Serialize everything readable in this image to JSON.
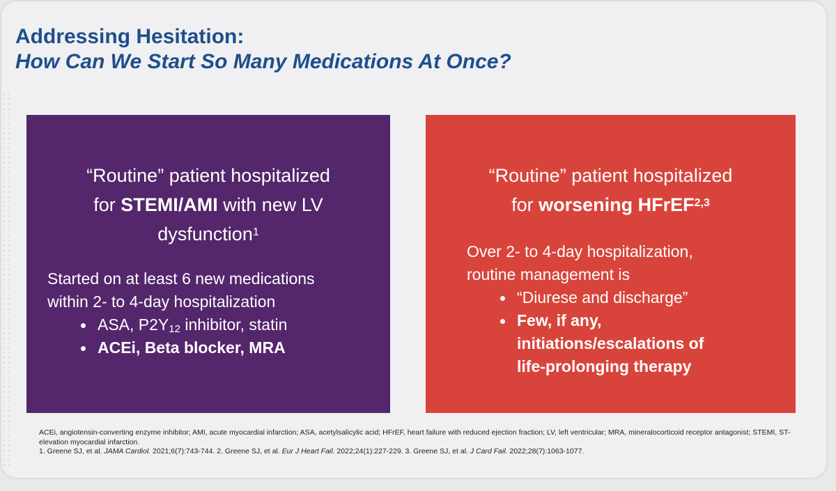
{
  "title": {
    "line1": "Addressing Hesitation:",
    "line2": "How Can We Start So Many Medications At Once?"
  },
  "left_box": {
    "heading_pre": "“Routine” patient hospitalized",
    "heading_for": "for ",
    "heading_bold": "STEMI/AMI",
    "heading_rest": " with new LV",
    "heading_line3": "dysfunction",
    "heading_sup": "1",
    "intro_line1": "Started on at least 6 new medications",
    "intro_line2": "within 2- to 4-day hospitalization",
    "bullet1_pre": "ASA, P2Y",
    "bullet1_sub": "12",
    "bullet1_post": " inhibitor, statin",
    "bullet2": "ACEi, Beta blocker, MRA"
  },
  "right_box": {
    "heading_line1": "“Routine” patient hospitalized",
    "heading_for": "for ",
    "heading_bold": "worsening HFrEF",
    "heading_sup": "2,3",
    "intro_line1": "Over 2- to 4-day hospitalization,",
    "intro_line2": "routine management is",
    "bullet1": "“Diurese and discharge”",
    "bullet2_l1": "Few, if any,",
    "bullet2_l2": "initiations/escalations of",
    "bullet2_l3": "life-prolonging therapy"
  },
  "footnotes": {
    "abbreviations": "ACEi, angiotensin-converting enzyme inhibitor; AMI, acute myocardial infarction; ASA, acetylsalicylic acid; HFrEF, heart failure with reduced ejection fraction; LV, left ventricular; MRA, mineralocorticoid receptor antagonist; STEMI, ST-elevation myocardial infarction.",
    "ref1_pre": "1. Greene SJ, et al. ",
    "ref1_journal": "JAMA Cardiol.",
    "ref1_post": " 2021;6(7):743-744. 2. Greene SJ, et al. ",
    "ref2_journal": "Eur J Heart Fail.",
    "ref2_post": " 2022;24(1):227-229. 3. Greene SJ, et al. ",
    "ref3_journal": "J Card Fail.",
    "ref3_post": " 2022;28(7):1063-1077."
  },
  "colors": {
    "title": "#1f4e8c",
    "left_box": "#54266b",
    "right_box": "#d8443b",
    "background": "#f0f0f2"
  }
}
